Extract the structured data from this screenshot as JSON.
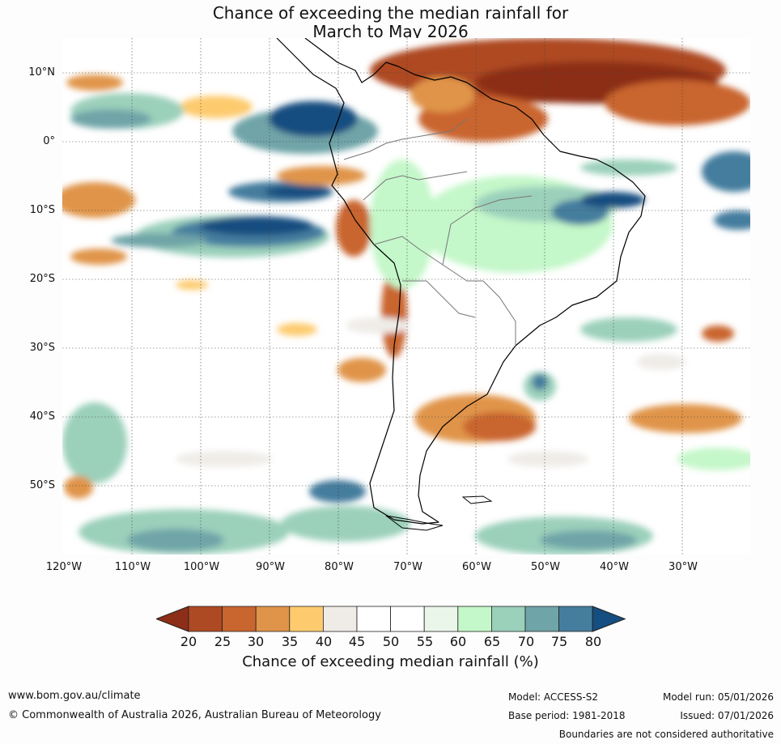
{
  "title": {
    "line1": "Chance of exceeding the median rainfall for",
    "line2": "March to May 2026"
  },
  "map": {
    "region": "South America",
    "lat_ticks": [
      "10°N",
      "0°",
      "10°S",
      "20°S",
      "30°S",
      "40°S",
      "50°S"
    ],
    "lon_ticks": [
      "120°W",
      "110°W",
      "100°W",
      "90°W",
      "80°W",
      "70°W",
      "60°W",
      "50°W",
      "40°W",
      "30°W"
    ]
  },
  "colorbar": {
    "labels": [
      "20",
      "25",
      "30",
      "35",
      "40",
      "45",
      "50",
      "55",
      "60",
      "65",
      "70",
      "75",
      "80"
    ],
    "colors": [
      "#8c2e18",
      "#ae4a23",
      "#c9652f",
      "#e0944a",
      "#fdcb6e",
      "#efece8",
      "#ffffff",
      "#ffffff",
      "#eaf6ea",
      "#c4f7c9",
      "#9bd0bb",
      "#6fa4a8",
      "#457d9e",
      "#154e80"
    ],
    "title": "Chance of exceeding median rainfall (%)"
  },
  "footer": {
    "website": "www.bom.gov.au/climate",
    "copyright": "© Commonwealth of Australia 2026, Australian Bureau of Meteorology",
    "model": "Model: ACCESS-S2",
    "base_period": "Base period: 1981-2018",
    "model_run": "Model run: 05/01/2026",
    "issued": "Issued: 07/01/2026",
    "boundaries_note": "Boundaries are not considered authoritative"
  }
}
